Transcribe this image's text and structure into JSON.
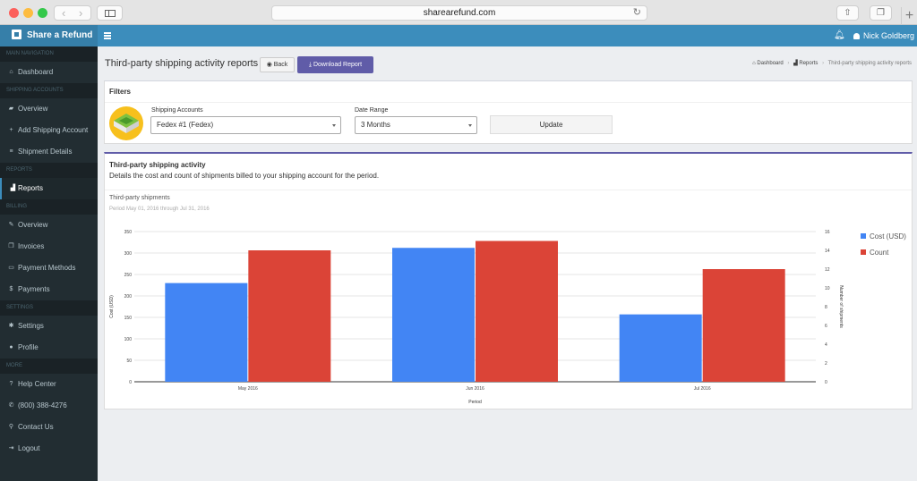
{
  "browser": {
    "url": "sharearefund.com",
    "icons": [
      "back-arrow-icon",
      "forward-arrow-icon",
      "sidebar-icon",
      "reload-icon",
      "share-icon",
      "tabs-icon",
      "new-tab-icon"
    ]
  },
  "topbar": {
    "brand": "Share a Refund",
    "user": "Nick Goldberg",
    "color": "#3c8dbc",
    "icons": [
      "menu-icon",
      "bell-icon",
      "user-icon"
    ]
  },
  "sidebar": {
    "sections": [
      {
        "header": "MAIN NAVIGATION",
        "items": [
          {
            "label": "Dashboard",
            "icon": "dashboard-icon",
            "glyph": "⌂"
          }
        ]
      },
      {
        "header": "SHIPPING ACCOUNTS",
        "items": [
          {
            "label": "Overview",
            "icon": "truck-icon",
            "glyph": "▰"
          },
          {
            "label": "Add Shipping Account",
            "icon": "plus-icon",
            "glyph": "+"
          },
          {
            "label": "Shipment Details",
            "icon": "list-icon",
            "glyph": "≡"
          }
        ]
      },
      {
        "header": "Reports",
        "items": [
          {
            "label": "Reports",
            "icon": "area-chart-icon",
            "glyph": "▟",
            "active": true
          }
        ]
      },
      {
        "header": "BILLING",
        "items": [
          {
            "label": "Overview",
            "icon": "edit-icon",
            "glyph": "✎"
          },
          {
            "label": "Invoices",
            "icon": "copy-icon",
            "glyph": "❐"
          },
          {
            "label": "Payment Methods",
            "icon": "credit-card-icon",
            "glyph": "▭"
          },
          {
            "label": "Payments",
            "icon": "dollar-icon",
            "glyph": "$"
          }
        ]
      },
      {
        "header": "SETTINGS",
        "items": [
          {
            "label": "Settings",
            "icon": "gear-icon",
            "glyph": "✱"
          },
          {
            "label": "Profile",
            "icon": "user-icon",
            "glyph": "●"
          }
        ]
      },
      {
        "header": "MORE",
        "items": [
          {
            "label": "Help Center",
            "icon": "question-icon",
            "glyph": "?"
          },
          {
            "label": "(800) 388-4276",
            "icon": "phone-icon",
            "glyph": "✆"
          },
          {
            "label": "Contact Us",
            "icon": "map-marker-icon",
            "glyph": "⚲"
          },
          {
            "label": "Logout",
            "icon": "sign-out-icon",
            "glyph": "⇥"
          }
        ]
      }
    ]
  },
  "header": {
    "title": "Third-party shipping activity reports",
    "back_label": "Back",
    "download_label": "Download Report",
    "download_color": "#605ca8"
  },
  "breadcrumb": {
    "dashboard": "Dashboard",
    "reports": "Reports",
    "current": "Third-party shipping activity reports"
  },
  "filters": {
    "title": "Filters",
    "shipping_label": "Shipping Accounts",
    "shipping_value": "Fedex #1 (Fedex)",
    "date_label": "Date Range",
    "date_value": "3 Months",
    "update_label": "Update"
  },
  "activity": {
    "title": "Third-party shipping activity",
    "description": "Details the cost and count of shipments billed to your shipping account for the period.",
    "chart_title": "Third-party shipments",
    "chart_subtitle": "Period May 01, 2016 through Jul 31, 2016"
  },
  "chart_data": {
    "type": "bar",
    "categories": [
      "May 2016",
      "Jun 2016",
      "Jul 2016"
    ],
    "series": [
      {
        "name": "Cost (USD)",
        "values": [
          230,
          312,
          157
        ],
        "axis": "left",
        "color": "#4285f4"
      },
      {
        "name": "Count",
        "values": [
          14,
          15,
          12
        ],
        "axis": "right",
        "color": "#db4437"
      }
    ],
    "xlabel": "Period",
    "ylabel": "Cost (USD)",
    "y2label": "Number of shipments",
    "ylim": [
      0,
      350
    ],
    "y2lim": [
      0,
      16
    ],
    "yticks": [
      "0",
      "50",
      "100",
      "150",
      "200",
      "250",
      "300",
      "350"
    ],
    "y2ticks": [
      "0",
      "2",
      "4",
      "6",
      "8",
      "10",
      "12",
      "14",
      "16"
    ],
    "grid": true,
    "legend": "right"
  }
}
